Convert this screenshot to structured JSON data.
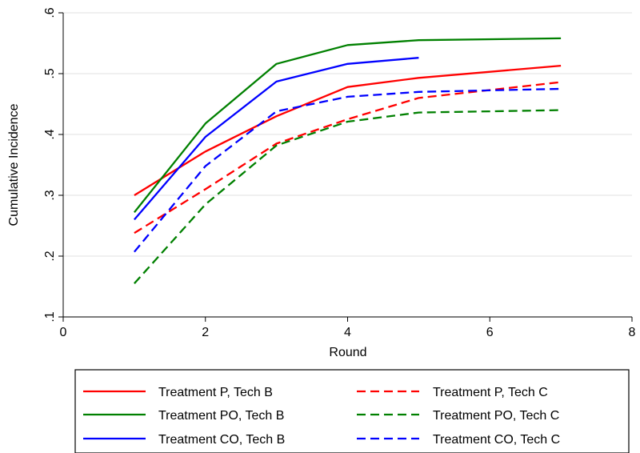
{
  "chart_data": {
    "type": "line",
    "title": "",
    "xlabel": "Round",
    "ylabel": "Cumulative Incidence",
    "xlim": [
      0,
      8
    ],
    "ylim": [
      0.1,
      0.6
    ],
    "xticks": [
      0,
      2,
      4,
      6,
      8
    ],
    "xtick_labels": [
      "0",
      "2",
      "4",
      "6",
      "8"
    ],
    "yticks": [
      0.1,
      0.2,
      0.3,
      0.4,
      0.5,
      0.6
    ],
    "ytick_labels": [
      ".1",
      ".2",
      ".3",
      ".4",
      ".5",
      ".6"
    ],
    "grid": "horizontal",
    "legend_position": "bottom",
    "series": [
      {
        "name": "Treatment P, Tech B",
        "color": "#ff0000",
        "dash": "solid",
        "x": [
          1,
          2,
          3,
          4,
          5,
          7
        ],
        "values": [
          0.3,
          0.372,
          0.43,
          0.478,
          0.493,
          0.513
        ]
      },
      {
        "name": "Treatment P, Tech C",
        "color": "#ff0000",
        "dash": "dashed",
        "x": [
          1,
          2,
          3,
          4,
          5,
          7
        ],
        "values": [
          0.238,
          0.31,
          0.385,
          0.425,
          0.46,
          0.486
        ]
      },
      {
        "name": "Treatment PO, Tech B",
        "color": "#008000",
        "dash": "solid",
        "x": [
          1,
          2,
          3,
          4,
          5,
          7
        ],
        "values": [
          0.272,
          0.418,
          0.516,
          0.547,
          0.555,
          0.558
        ]
      },
      {
        "name": "Treatment PO, Tech C",
        "color": "#008000",
        "dash": "dashed",
        "x": [
          1,
          2,
          3,
          4,
          5,
          7
        ],
        "values": [
          0.155,
          0.285,
          0.382,
          0.421,
          0.436,
          0.44
        ]
      },
      {
        "name": "Treatment CO, Tech B",
        "color": "#0000ff",
        "dash": "solid",
        "x": [
          1,
          2,
          3,
          4,
          5
        ],
        "values": [
          0.26,
          0.396,
          0.487,
          0.516,
          0.526
        ]
      },
      {
        "name": "Treatment CO, Tech C",
        "color": "#0000ff",
        "dash": "dashed",
        "x": [
          1,
          2,
          3,
          4,
          5,
          7
        ],
        "values": [
          0.207,
          0.348,
          0.438,
          0.462,
          0.47,
          0.475
        ]
      }
    ]
  }
}
